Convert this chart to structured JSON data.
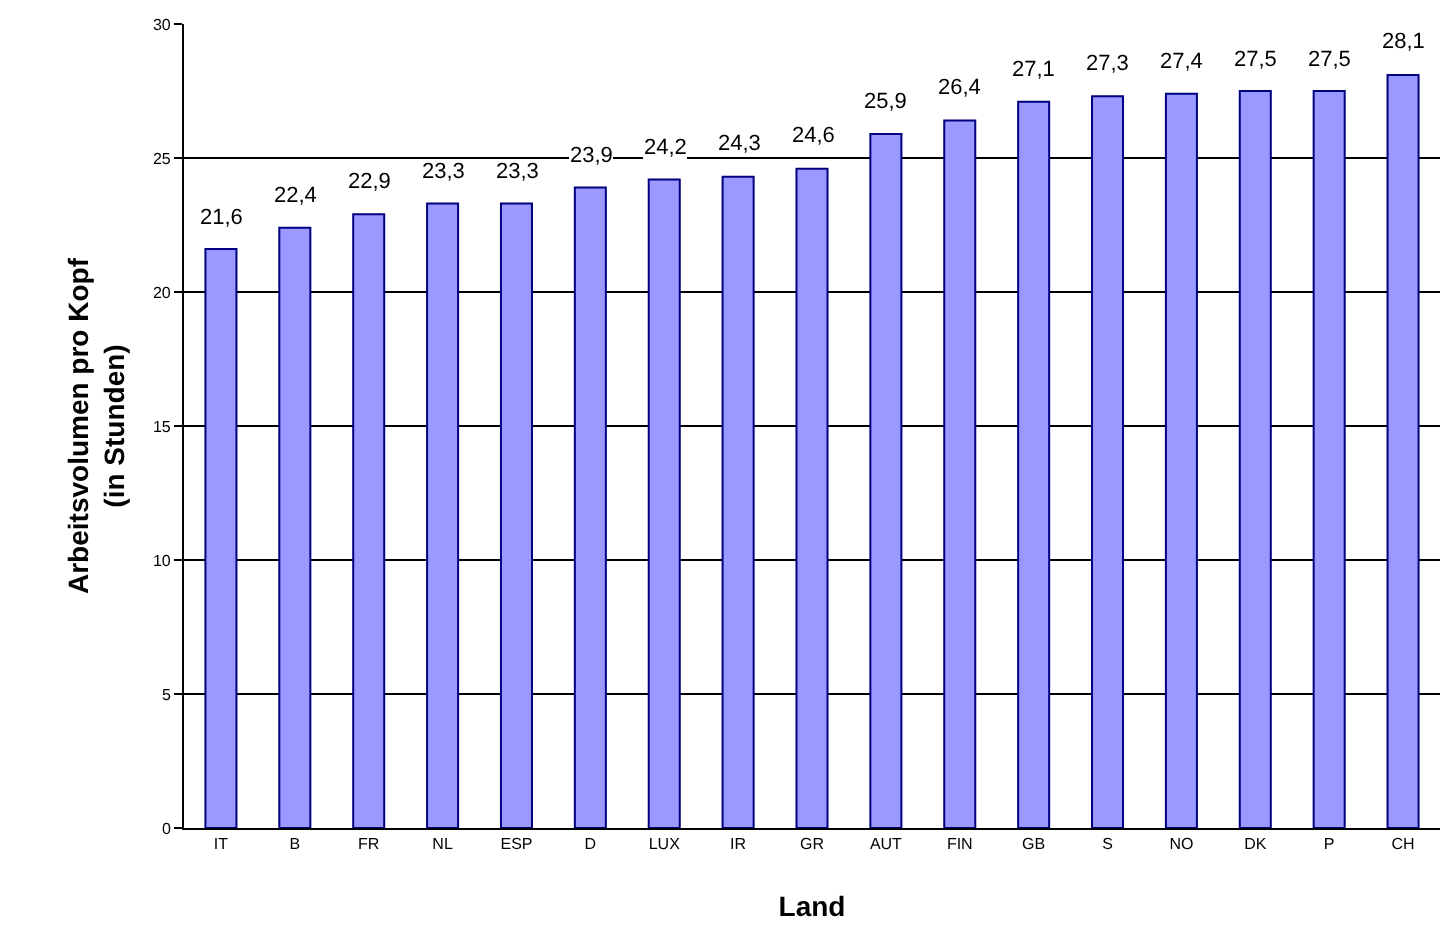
{
  "chart_data": {
    "type": "bar",
    "xlabel": "Land",
    "ylabel": "Arbeitsvolumen pro Kopf\n(in Stunden)",
    "categories": [
      "IT",
      "B",
      "FR",
      "NL",
      "ESP",
      "D",
      "LUX",
      "IR",
      "GR",
      "AUT",
      "FIN",
      "GB",
      "S",
      "NO",
      "DK",
      "P",
      "CH"
    ],
    "values": [
      21.6,
      22.4,
      22.9,
      23.3,
      23.3,
      23.9,
      24.2,
      24.3,
      24.6,
      25.9,
      26.4,
      27.1,
      27.3,
      27.4,
      27.5,
      27.5,
      28.1
    ],
    "value_labels": [
      "21,6",
      "22,4",
      "22,9",
      "23,3",
      "23,3",
      "23,9",
      "24,2",
      "24,3",
      "24,6",
      "25,9",
      "26,4",
      "27,1",
      "27,3",
      "27,4",
      "27,5",
      "27,5",
      "28,1"
    ],
    "color": "#9999ff",
    "ylim": [
      0,
      30
    ],
    "yticks": [
      0,
      5,
      10,
      15,
      20,
      25,
      30
    ],
    "grid": "y"
  }
}
